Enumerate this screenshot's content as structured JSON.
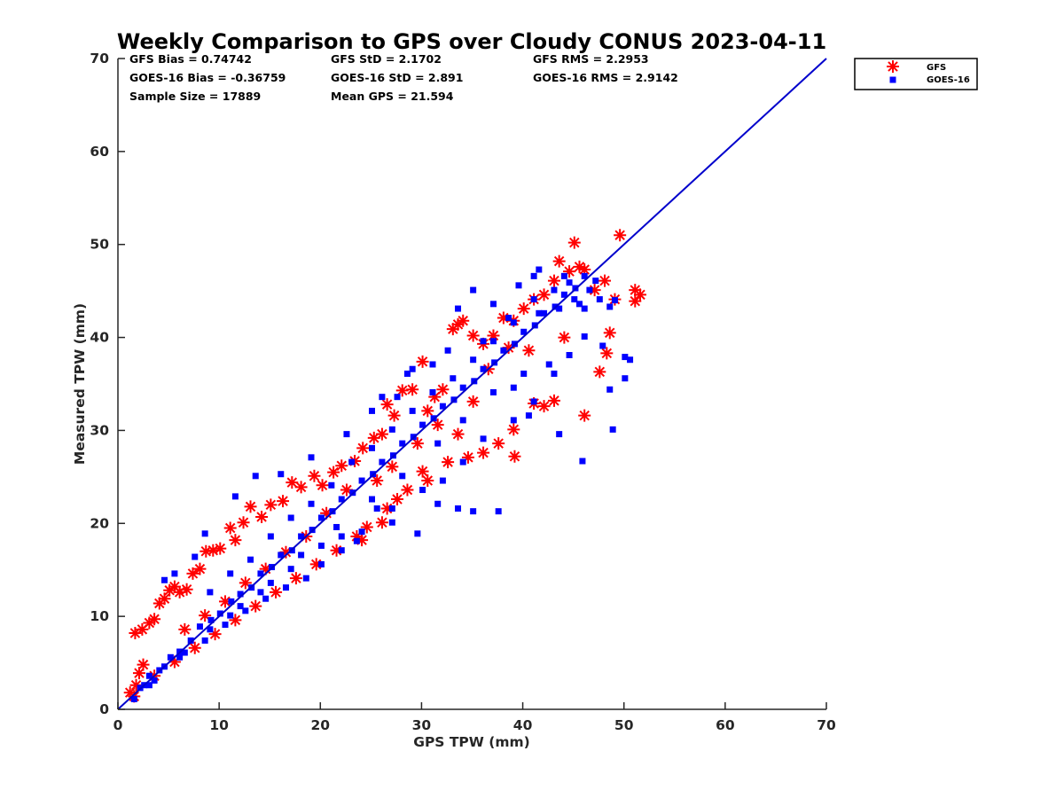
{
  "chart_data": {
    "type": "scatter",
    "title": "Weekly Comparison to GPS over Cloudy CONUS 2023-04-11",
    "xlabel": "GPS TPW (mm)",
    "ylabel": "Measured TPW (mm)",
    "xlim": [
      0,
      70
    ],
    "ylim": [
      0,
      70
    ],
    "xticks": [
      "0",
      "10",
      "20",
      "30",
      "40",
      "50",
      "60",
      "70"
    ],
    "yticks": [
      "0",
      "10",
      "20",
      "30",
      "40",
      "50",
      "60",
      "70"
    ],
    "grid": false,
    "legend_position": "outside-top-right",
    "stats": [
      [
        "GFS Bias = 0.74742",
        "GFS StD = 2.1702",
        "GFS RMS = 2.2953"
      ],
      [
        "GOES-16 Bias = -0.36759",
        "GOES-16 StD = 2.891",
        "GOES-16 RMS = 2.9142"
      ],
      [
        "Sample Size = 17889",
        "Mean GPS = 21.594",
        ""
      ]
    ],
    "reference_line": {
      "x": [
        0,
        70
      ],
      "y": [
        0,
        70
      ],
      "color": "#0000cc"
    },
    "series": [
      {
        "name": "GFS",
        "marker": "asterisk",
        "color": "#ff0000",
        "points": [
          [
            1.2,
            1.8
          ],
          [
            1.6,
            1.4
          ],
          [
            1.8,
            2.6
          ],
          [
            2.1,
            3.9
          ],
          [
            2.5,
            4.8
          ],
          [
            1.7,
            8.2
          ],
          [
            2.4,
            8.6
          ],
          [
            3.1,
            9.3
          ],
          [
            3.6,
            9.7
          ],
          [
            4.1,
            11.4
          ],
          [
            4.6,
            11.9
          ],
          [
            5.1,
            12.8
          ],
          [
            5.6,
            13.2
          ],
          [
            6.1,
            12.6
          ],
          [
            6.8,
            12.9
          ],
          [
            7.4,
            14.6
          ],
          [
            8.1,
            15.1
          ],
          [
            8.7,
            17.0
          ],
          [
            9.4,
            17.1
          ],
          [
            10.1,
            17.3
          ],
          [
            11.1,
            19.5
          ],
          [
            11.6,
            18.2
          ],
          [
            12.4,
            20.1
          ],
          [
            13.1,
            21.8
          ],
          [
            14.2,
            20.7
          ],
          [
            15.1,
            22.0
          ],
          [
            16.3,
            22.4
          ],
          [
            17.2,
            24.4
          ],
          [
            18.1,
            23.9
          ],
          [
            19.4,
            25.1
          ],
          [
            20.2,
            24.1
          ],
          [
            21.3,
            25.5
          ],
          [
            22.1,
            26.2
          ],
          [
            23.4,
            26.7
          ],
          [
            24.2,
            28.1
          ],
          [
            25.3,
            29.2
          ],
          [
            26.1,
            29.6
          ],
          [
            26.6,
            32.8
          ],
          [
            27.3,
            31.6
          ],
          [
            28.1,
            34.3
          ],
          [
            29.1,
            34.4
          ],
          [
            30.1,
            37.4
          ],
          [
            30.6,
            32.1
          ],
          [
            31.3,
            33.6
          ],
          [
            32.1,
            34.4
          ],
          [
            33.1,
            40.9
          ],
          [
            33.6,
            41.4
          ],
          [
            34.1,
            41.8
          ],
          [
            35.1,
            40.2
          ],
          [
            36.1,
            39.3
          ],
          [
            37.1,
            40.2
          ],
          [
            38.1,
            42.1
          ],
          [
            39.1,
            41.8
          ],
          [
            40.1,
            43.1
          ],
          [
            41.1,
            44.1
          ],
          [
            42.1,
            44.6
          ],
          [
            43.1,
            46.1
          ],
          [
            43.6,
            48.2
          ],
          [
            44.6,
            47.1
          ],
          [
            45.1,
            50.2
          ],
          [
            45.6,
            47.6
          ],
          [
            46.1,
            47.3
          ],
          [
            47.1,
            45.1
          ],
          [
            48.1,
            46.1
          ],
          [
            49.1,
            44.1
          ],
          [
            49.6,
            51.0
          ],
          [
            51.1,
            45.1
          ],
          [
            51.6,
            44.6
          ],
          [
            51.1,
            43.9
          ],
          [
            48.6,
            40.5
          ],
          [
            48.3,
            38.3
          ],
          [
            47.6,
            36.3
          ],
          [
            46.1,
            31.6
          ],
          [
            42.1,
            32.6
          ],
          [
            41.1,
            32.9
          ],
          [
            39.1,
            30.1
          ],
          [
            37.6,
            28.6
          ],
          [
            36.1,
            27.6
          ],
          [
            34.6,
            27.1
          ],
          [
            32.6,
            26.6
          ],
          [
            30.6,
            24.6
          ],
          [
            28.6,
            23.6
          ],
          [
            27.6,
            22.6
          ],
          [
            26.6,
            21.6
          ],
          [
            24.6,
            19.6
          ],
          [
            23.6,
            18.6
          ],
          [
            21.6,
            17.1
          ],
          [
            19.6,
            15.6
          ],
          [
            17.6,
            14.1
          ],
          [
            15.6,
            12.6
          ],
          [
            13.6,
            11.1
          ],
          [
            11.6,
            9.6
          ],
          [
            9.6,
            8.1
          ],
          [
            7.6,
            6.6
          ],
          [
            5.6,
            5.1
          ],
          [
            3.6,
            3.6
          ],
          [
            24.1,
            18.2
          ],
          [
            26.1,
            20.1
          ],
          [
            30.1,
            25.6
          ],
          [
            33.6,
            29.6
          ],
          [
            39.2,
            27.2
          ],
          [
            43.1,
            33.2
          ],
          [
            44.1,
            40.0
          ],
          [
            40.6,
            38.6
          ],
          [
            38.6,
            38.9
          ],
          [
            36.6,
            36.6
          ],
          [
            35.1,
            33.1
          ],
          [
            31.6,
            30.6
          ],
          [
            29.6,
            28.6
          ],
          [
            27.1,
            26.1
          ],
          [
            25.6,
            24.6
          ],
          [
            22.6,
            23.6
          ],
          [
            20.6,
            21.1
          ],
          [
            18.6,
            18.6
          ],
          [
            16.6,
            16.9
          ],
          [
            14.6,
            15.1
          ],
          [
            12.6,
            13.6
          ],
          [
            10.6,
            11.6
          ],
          [
            8.6,
            10.1
          ],
          [
            6.6,
            8.6
          ]
        ]
      },
      {
        "name": "GOES-16",
        "marker": "square",
        "color": "#0000ff",
        "points": [
          [
            1.6,
            1.1
          ],
          [
            2.2,
            2.3
          ],
          [
            3.1,
            3.6
          ],
          [
            4.1,
            4.2
          ],
          [
            5.2,
            5.6
          ],
          [
            6.1,
            6.2
          ],
          [
            7.2,
            7.4
          ],
          [
            8.1,
            8.9
          ],
          [
            9.2,
            9.6
          ],
          [
            10.1,
            10.3
          ],
          [
            11.2,
            11.6
          ],
          [
            12.1,
            12.4
          ],
          [
            13.2,
            13.1
          ],
          [
            14.1,
            14.6
          ],
          [
            15.2,
            15.3
          ],
          [
            16.1,
            16.6
          ],
          [
            17.2,
            17.1
          ],
          [
            18.1,
            18.6
          ],
          [
            19.2,
            19.3
          ],
          [
            20.1,
            20.6
          ],
          [
            21.2,
            21.3
          ],
          [
            22.1,
            22.6
          ],
          [
            23.2,
            23.3
          ],
          [
            24.1,
            24.6
          ],
          [
            25.2,
            25.3
          ],
          [
            26.1,
            26.6
          ],
          [
            27.2,
            27.3
          ],
          [
            28.1,
            28.6
          ],
          [
            29.2,
            29.3
          ],
          [
            30.1,
            30.6
          ],
          [
            31.2,
            31.3
          ],
          [
            32.1,
            32.6
          ],
          [
            33.2,
            33.3
          ],
          [
            34.1,
            34.6
          ],
          [
            35.2,
            35.3
          ],
          [
            36.1,
            36.6
          ],
          [
            37.2,
            37.3
          ],
          [
            38.1,
            38.6
          ],
          [
            39.2,
            39.3
          ],
          [
            40.1,
            40.6
          ],
          [
            41.2,
            41.3
          ],
          [
            42.1,
            42.6
          ],
          [
            43.2,
            43.3
          ],
          [
            44.1,
            44.6
          ],
          [
            45.2,
            45.3
          ],
          [
            46.1,
            46.6
          ],
          [
            47.2,
            46.1
          ],
          [
            41.1,
            46.6
          ],
          [
            41.6,
            47.3
          ],
          [
            35.1,
            45.1
          ],
          [
            4.6,
            13.9
          ],
          [
            5.6,
            14.6
          ],
          [
            7.6,
            16.4
          ],
          [
            8.6,
            18.9
          ],
          [
            11.6,
            22.9
          ],
          [
            13.6,
            25.1
          ],
          [
            16.1,
            25.3
          ],
          [
            19.1,
            27.1
          ],
          [
            22.6,
            29.6
          ],
          [
            25.1,
            32.1
          ],
          [
            27.6,
            33.6
          ],
          [
            29.1,
            36.6
          ],
          [
            32.6,
            38.6
          ],
          [
            33.6,
            43.1
          ],
          [
            37.1,
            43.6
          ],
          [
            39.6,
            45.6
          ],
          [
            44.6,
            45.9
          ],
          [
            47.6,
            44.1
          ],
          [
            49.1,
            44.0
          ],
          [
            48.6,
            43.3
          ],
          [
            47.9,
            39.1
          ],
          [
            50.1,
            37.9
          ],
          [
            50.6,
            37.6
          ],
          [
            50.1,
            35.6
          ],
          [
            48.6,
            34.4
          ],
          [
            48.9,
            30.1
          ],
          [
            45.9,
            26.7
          ],
          [
            43.6,
            29.6
          ],
          [
            40.6,
            31.6
          ],
          [
            39.1,
            34.6
          ],
          [
            37.6,
            21.3
          ],
          [
            35.1,
            21.3
          ],
          [
            33.6,
            21.6
          ],
          [
            31.6,
            22.1
          ],
          [
            29.6,
            18.9
          ],
          [
            27.1,
            20.1
          ],
          [
            25.6,
            21.6
          ],
          [
            23.6,
            18.1
          ],
          [
            22.1,
            17.1
          ],
          [
            20.1,
            15.6
          ],
          [
            18.6,
            14.1
          ],
          [
            16.6,
            13.1
          ],
          [
            14.6,
            11.9
          ],
          [
            12.6,
            10.6
          ],
          [
            10.6,
            9.1
          ],
          [
            8.6,
            7.4
          ],
          [
            6.6,
            6.1
          ],
          [
            4.6,
            4.6
          ],
          [
            3.6,
            3.1
          ],
          [
            2.6,
            2.6
          ],
          [
            26.1,
            33.6
          ],
          [
            28.6,
            36.1
          ],
          [
            31.1,
            37.1
          ],
          [
            36.1,
            39.6
          ],
          [
            38.6,
            42.1
          ],
          [
            41.6,
            42.6
          ],
          [
            43.6,
            43.1
          ],
          [
            45.6,
            43.6
          ],
          [
            46.6,
            45.1
          ],
          [
            46.1,
            40.1
          ],
          [
            44.6,
            38.1
          ],
          [
            42.6,
            37.1
          ],
          [
            40.1,
            36.1
          ],
          [
            37.1,
            34.1
          ],
          [
            34.1,
            31.1
          ],
          [
            31.6,
            28.6
          ],
          [
            28.1,
            25.1
          ],
          [
            25.1,
            22.6
          ],
          [
            21.6,
            19.6
          ],
          [
            18.1,
            16.6
          ],
          [
            15.1,
            13.6
          ],
          [
            12.1,
            11.1
          ],
          [
            9.1,
            8.6
          ],
          [
            6.1,
            5.6
          ],
          [
            3.1,
            2.6
          ],
          [
            9.1,
            12.6
          ],
          [
            11.1,
            14.6
          ],
          [
            13.1,
            16.1
          ],
          [
            15.1,
            18.6
          ],
          [
            17.1,
            20.6
          ],
          [
            19.1,
            22.1
          ],
          [
            21.1,
            24.1
          ],
          [
            23.1,
            26.6
          ],
          [
            25.1,
            28.1
          ],
          [
            27.1,
            30.1
          ],
          [
            29.1,
            32.1
          ],
          [
            31.1,
            34.1
          ],
          [
            33.1,
            35.6
          ],
          [
            35.1,
            37.6
          ],
          [
            37.1,
            39.6
          ],
          [
            39.1,
            41.6
          ],
          [
            41.1,
            44.1
          ],
          [
            43.1,
            45.1
          ],
          [
            44.1,
            46.6
          ],
          [
            45.1,
            44.1
          ],
          [
            46.1,
            43.1
          ],
          [
            43.1,
            36.1
          ],
          [
            41.1,
            33.1
          ],
          [
            39.1,
            31.1
          ],
          [
            36.1,
            29.1
          ],
          [
            34.1,
            26.6
          ],
          [
            32.1,
            24.6
          ],
          [
            30.1,
            23.6
          ],
          [
            27.1,
            21.6
          ],
          [
            24.1,
            19.1
          ],
          [
            22.1,
            18.6
          ],
          [
            20.1,
            17.6
          ],
          [
            17.1,
            15.1
          ],
          [
            14.1,
            12.6
          ],
          [
            11.1,
            10.1
          ]
        ]
      }
    ]
  },
  "legend": {
    "items": [
      {
        "label": "GFS",
        "marker": "asterisk",
        "color": "#ff0000"
      },
      {
        "label": "GOES-16",
        "marker": "square",
        "color": "#0000ff"
      }
    ]
  }
}
